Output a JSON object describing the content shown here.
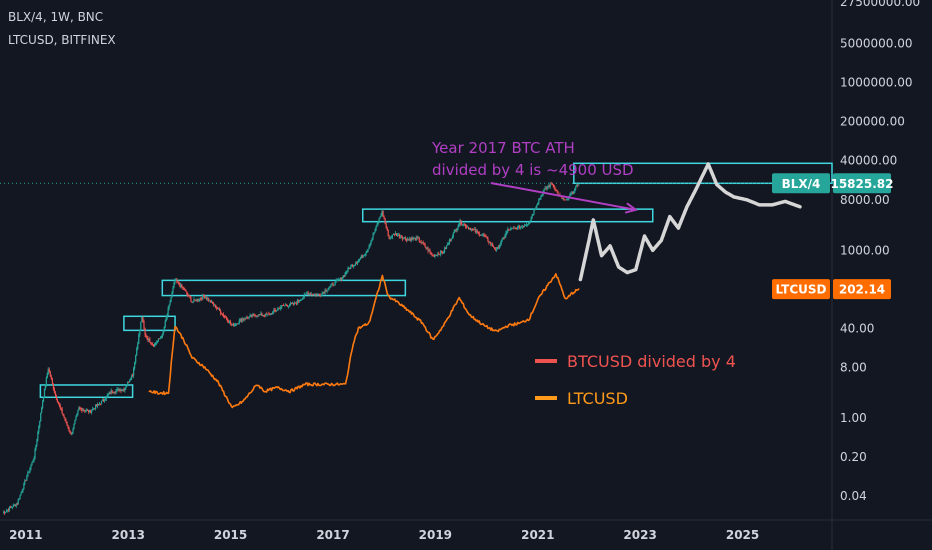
{
  "header": {
    "symbol_line": "BLX/4, 1W, BNC",
    "compare_line": "LTCUSD, BITFINEX"
  },
  "colors": {
    "background": "#131722",
    "candle_up": "#26a69a",
    "candle_down": "#ef5350",
    "ltc_line": "#ff7a10",
    "zone_box": "#40d8e0",
    "projection": "#d6d6d6",
    "annotation_text": "#b03fc4",
    "legend_btc": "#ef5350",
    "legend_ltc": "#ff9a1a",
    "blx_badge": "#26a69a",
    "ltc_badge": "#ff6d00"
  },
  "chart_data": {
    "type": "line",
    "x_axis": {
      "type": "date",
      "range": [
        "2010-07-01",
        "2026-10-01"
      ],
      "tick_labels": [
        "2011",
        "2013",
        "2015",
        "2017",
        "2019",
        "2021",
        "2023",
        "2025"
      ]
    },
    "y_axis": {
      "scale": "log",
      "range": [
        0.015,
        30000000
      ],
      "tick_labels": [
        "27500000.00",
        "5000000.00",
        "1000000.00",
        "200000.00",
        "40000.00",
        "8000.00",
        "1000.00",
        "40.00",
        "8.00",
        "1.00",
        "0.20",
        "0.04"
      ],
      "tick_values": [
        27500000,
        5000000,
        1000000,
        200000,
        40000,
        8000,
        1000,
        40,
        8,
        1,
        0.2,
        0.04
      ]
    },
    "series": [
      {
        "name": "BTCUSD divided by 4",
        "style": "candles",
        "x": [
          "2010-07-20",
          "2010-11-01",
          "2011-01-01",
          "2011-03-01",
          "2011-05-01",
          "2011-06-10",
          "2011-08-01",
          "2011-10-01",
          "2011-11-20",
          "2012-01-15",
          "2012-04-01",
          "2012-07-01",
          "2012-09-01",
          "2012-12-01",
          "2013-02-01",
          "2013-04-08",
          "2013-05-01",
          "2013-07-01",
          "2013-09-01",
          "2013-11-30",
          "2014-02-01",
          "2014-04-01",
          "2014-07-01",
          "2014-10-01",
          "2015-01-15",
          "2015-04-01",
          "2015-07-01",
          "2015-10-01",
          "2016-01-01",
          "2016-04-01",
          "2016-07-01",
          "2016-10-01",
          "2017-01-01",
          "2017-03-01",
          "2017-05-01",
          "2017-07-01",
          "2017-09-01",
          "2017-12-17",
          "2018-02-06",
          "2018-03-15",
          "2018-06-01",
          "2018-09-01",
          "2018-12-15",
          "2019-03-01",
          "2019-06-26",
          "2019-09-01",
          "2019-12-15",
          "2020-03-12",
          "2020-06-01",
          "2020-09-01",
          "2020-11-01",
          "2021-01-01",
          "2021-02-15",
          "2021-04-14",
          "2021-06-01",
          "2021-07-20",
          "2021-09-01",
          "2021-10-20"
        ],
        "values": [
          0.02,
          0.03,
          0.08,
          0.2,
          2,
          7.75,
          2.5,
          1,
          0.5,
          1.5,
          1.3,
          2,
          3,
          3.3,
          6,
          66,
          30,
          20,
          30,
          290,
          200,
          120,
          150,
          90,
          45,
          60,
          70,
          70,
          100,
          110,
          170,
          160,
          250,
          310,
          500,
          650,
          1000,
          4900,
          1600,
          2000,
          1600,
          1600,
          800,
          950,
          3250,
          2500,
          1800,
          1000,
          2300,
          2600,
          3200,
          7500,
          12000,
          15800,
          9500,
          7500,
          10500,
          15800
        ]
      },
      {
        "name": "LTCUSD",
        "style": "line",
        "x": [
          "2013-06-01",
          "2013-08-01",
          "2013-10-15",
          "2013-11-30",
          "2014-02-01",
          "2014-04-01",
          "2014-07-01",
          "2014-10-01",
          "2015-01-14",
          "2015-04-01",
          "2015-07-10",
          "2015-09-01",
          "2015-12-01",
          "2016-03-01",
          "2016-06-15",
          "2016-09-01",
          "2016-12-01",
          "2017-02-01",
          "2017-04-01",
          "2017-05-25",
          "2017-07-01",
          "2017-09-15",
          "2017-12-19",
          "2018-02-01",
          "2018-04-01",
          "2018-07-01",
          "2018-10-01",
          "2018-12-15",
          "2019-03-01",
          "2019-06-20",
          "2019-09-01",
          "2019-12-15",
          "2020-03-12",
          "2020-06-01",
          "2020-09-01",
          "2020-11-01",
          "2021-01-01",
          "2021-02-20",
          "2021-05-10",
          "2021-07-20",
          "2021-09-01",
          "2021-10-20"
        ],
        "values": [
          3,
          2.8,
          2.8,
          45,
          25,
          12,
          8,
          4.5,
          1.5,
          2,
          4,
          3,
          3.5,
          3,
          4,
          4,
          4,
          4,
          4,
          22,
          40,
          50,
          350,
          150,
          120,
          80,
          50,
          25,
          45,
          140,
          70,
          45,
          35,
          45,
          50,
          60,
          130,
          200,
          380,
          130,
          170,
          202.14
        ]
      },
      {
        "name": "",
        "style": "projection",
        "x": [
          "2021-11-01",
          "2022-01-01",
          "2022-02-01",
          "2022-04-01",
          "2022-06-01",
          "2022-08-01",
          "2022-10-01",
          "2022-12-01",
          "2023-02-01",
          "2023-04-01",
          "2023-06-01",
          "2023-08-01",
          "2023-10-01",
          "2023-12-01",
          "2024-02-01",
          "2024-05-01",
          "2024-07-01",
          "2024-09-01",
          "2024-11-01",
          "2025-02-01",
          "2025-05-01",
          "2025-08-01",
          "2025-11-01",
          "2026-02-15"
        ],
        "values": [
          300,
          1500,
          3500,
          800,
          1200,
          500,
          400,
          450,
          1800,
          1000,
          1500,
          4000,
          2500,
          6000,
          12000,
          35000,
          15000,
          11000,
          9000,
          8000,
          6500,
          6500,
          7500,
          6000
        ]
      }
    ],
    "annotations": {
      "arrow_label_line1": "Year 2017 BTC ATH",
      "arrow_label_line2": "divided by 4 is ~4900 USD",
      "arrow_from": {
        "x": "2020-02-01",
        "y": 16000
      },
      "arrow_to": {
        "x": "2022-12-01",
        "y": 5300
      },
      "legend": [
        {
          "label": "BTCUSD divided by 4",
          "color_key": "legend_btc"
        },
        {
          "label": "LTCUSD",
          "color_key": "legend_ltc"
        }
      ],
      "zones": [
        {
          "x0": "2011-04-15",
          "x1": "2013-02-01",
          "y0": 2.35,
          "y1": 3.9
        },
        {
          "x0": "2012-12-01",
          "x1": "2013-12-01",
          "y0": 37,
          "y1": 66
        },
        {
          "x0": "2013-09-01",
          "x1": "2018-06-01",
          "y0": 155,
          "y1": 290
        },
        {
          "x0": "2017-08-01",
          "x1": "2023-04-01",
          "y0": 3250,
          "y1": 5450
        },
        {
          "x0": "2021-09-15",
          "x1": "2026-10-01",
          "y0": 15800,
          "y1": 36000
        }
      ],
      "price_line": 15825.82
    },
    "badges": [
      {
        "name": "BLX/4",
        "value": "15825.82",
        "y": 15825.82,
        "color_key": "blx_badge"
      },
      {
        "name": "LTCUSD",
        "value": "202.14",
        "y": 202.14,
        "color_key": "ltc_badge"
      }
    ],
    "grid": false,
    "legend_position": "center-right"
  }
}
